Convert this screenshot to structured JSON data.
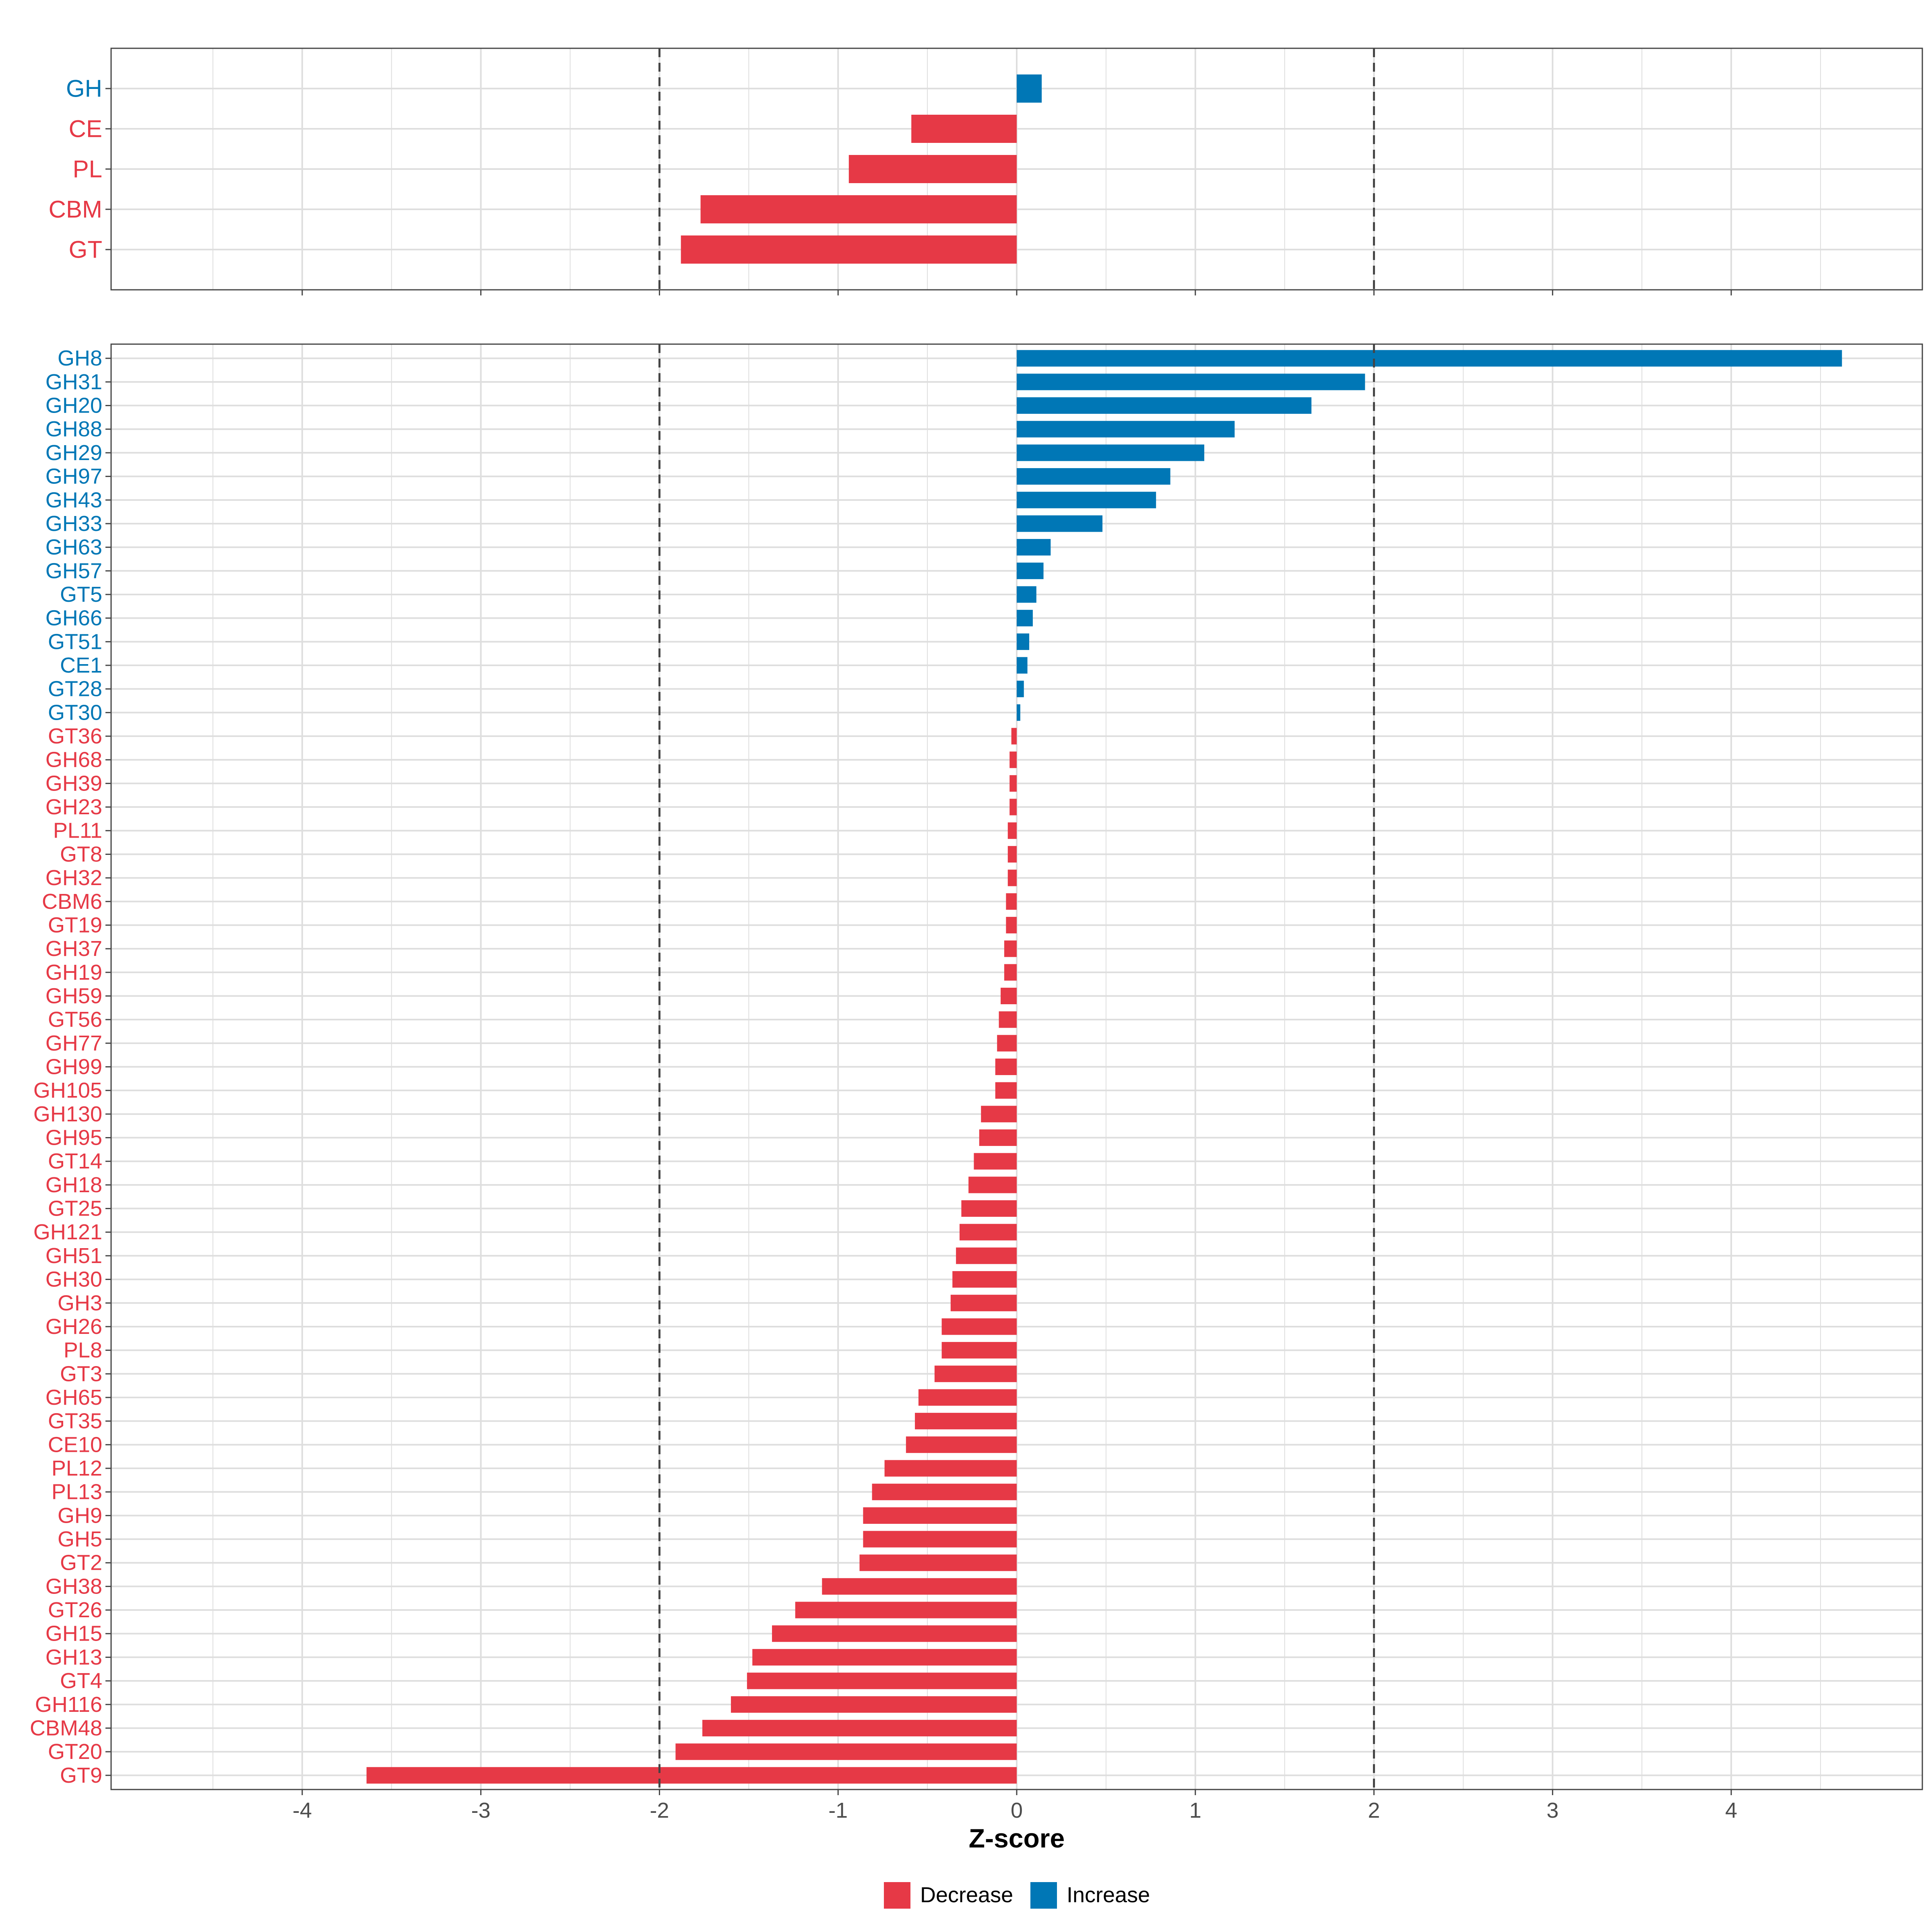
{
  "chart_data": [
    {
      "type": "bar",
      "orientation": "horizontal",
      "panel": "top",
      "title": "",
      "categories": [
        "GH",
        "CE",
        "PL",
        "CBM",
        "GT"
      ],
      "values": [
        0.14,
        -0.59,
        -0.94,
        -1.77,
        -1.88
      ],
      "reference_lines": [
        -2,
        2
      ],
      "xlim": [
        -5.07,
        5.07
      ],
      "grid": true
    },
    {
      "type": "bar",
      "orientation": "horizontal",
      "panel": "bottom",
      "title": "",
      "categories": [
        "GH8",
        "GH31",
        "GH20",
        "GH88",
        "GH29",
        "GH97",
        "GH43",
        "GH33",
        "GH63",
        "GH57",
        "GT5",
        "GH66",
        "GT51",
        "CE1",
        "GT28",
        "GT30",
        "GT36",
        "GH68",
        "GH39",
        "GH23",
        "PL11",
        "GT8",
        "GH32",
        "CBM6",
        "GT19",
        "GH37",
        "GH19",
        "GH59",
        "GT56",
        "GH77",
        "GH99",
        "GH105",
        "GH130",
        "GH95",
        "GT14",
        "GH18",
        "GT25",
        "GH121",
        "GH51",
        "GH30",
        "GH3",
        "GH26",
        "PL8",
        "GT3",
        "GH65",
        "GT35",
        "CE10",
        "PL12",
        "PL13",
        "GH9",
        "GH5",
        "GT2",
        "GH38",
        "GT26",
        "GH15",
        "GH13",
        "GT4",
        "GH116",
        "CBM48",
        "GT20",
        "GT9"
      ],
      "values": [
        4.62,
        1.95,
        1.65,
        1.22,
        1.05,
        0.86,
        0.78,
        0.48,
        0.19,
        0.15,
        0.11,
        0.09,
        0.07,
        0.06,
        0.04,
        0.02,
        -0.03,
        -0.04,
        -0.04,
        -0.04,
        -0.05,
        -0.05,
        -0.05,
        -0.06,
        -0.06,
        -0.07,
        -0.07,
        -0.09,
        -0.1,
        -0.11,
        -0.12,
        -0.12,
        -0.2,
        -0.21,
        -0.24,
        -0.27,
        -0.31,
        -0.32,
        -0.34,
        -0.36,
        -0.37,
        -0.42,
        -0.42,
        -0.46,
        -0.55,
        -0.57,
        -0.62,
        -0.74,
        -0.81,
        -0.86,
        -0.86,
        -0.88,
        -1.09,
        -1.24,
        -1.37,
        -1.48,
        -1.51,
        -1.6,
        -1.76,
        -1.91,
        -3.64
      ],
      "reference_lines": [
        -2,
        2
      ],
      "xlim": [
        -5.07,
        5.07
      ],
      "x_ticks": [
        -4,
        -3,
        -2,
        -1,
        0,
        1,
        2,
        3,
        4
      ],
      "x_tick_labels": [
        "-4",
        "-3",
        "-2",
        "-1",
        "0",
        "1",
        "2",
        "3",
        "4"
      ],
      "xlabel": "Z-score",
      "ylabel": "",
      "grid": true
    }
  ],
  "legend": {
    "position": "bottom",
    "items": [
      {
        "label": "Decrease",
        "color": "#e63946"
      },
      {
        "label": "Increase",
        "color": "#0077b6"
      }
    ]
  },
  "colors": {
    "decrease": "#e63946",
    "increase": "#0077b6",
    "grid": "#dedede",
    "frame": "#444444",
    "refline": "#444444",
    "tick_text": "#4d4d4d",
    "axis_title": "#000000"
  }
}
